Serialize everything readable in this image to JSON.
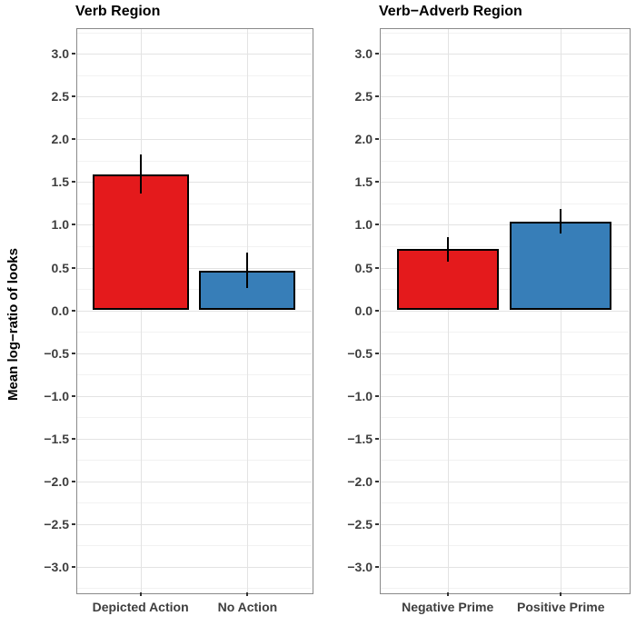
{
  "figure": {
    "y_axis_title": "Mean log−ratio of looks"
  },
  "palette": {
    "bar_red": "#E41A1C",
    "bar_blue": "#377EB8",
    "bar_outline": "#000000",
    "error_bar": "#000000",
    "grid_major": "#E3E3E3",
    "grid_minor": "#F2F2F2",
    "panel_border": "#8A8A8A",
    "tick_mark": "#333333",
    "axis_text": "#3E3E3E",
    "title_text": "#000000",
    "background": "#FFFFFF"
  },
  "chart_data": [
    {
      "type": "bar",
      "title": "Verb Region",
      "categories": [
        "Depicted Action",
        "No Action"
      ],
      "values": [
        1.59,
        0.46
      ],
      "error_low": [
        1.37,
        0.26
      ],
      "error_high": [
        1.82,
        0.68
      ],
      "bar_colors": [
        "#E41A1C",
        "#377EB8"
      ],
      "ylabel": "Mean log−ratio of looks",
      "xlabel": "",
      "ylim": [
        -3.3,
        3.3
      ],
      "yticks": {
        "min": -3.0,
        "max": 3.0,
        "step": 0.5
      },
      "grid": "horizontal major+minor, vertical at categories",
      "legend": "none",
      "error_bar_style": "vertical line, no caps"
    },
    {
      "type": "bar",
      "title": "Verb−Adverb Region",
      "categories": [
        "Negative Prime",
        "Positive Prime"
      ],
      "values": [
        0.72,
        1.04
      ],
      "error_low": [
        0.57,
        0.9
      ],
      "error_high": [
        0.86,
        1.19
      ],
      "bar_colors": [
        "#E41A1C",
        "#377EB8"
      ],
      "ylabel": "",
      "xlabel": "",
      "ylim": [
        -3.3,
        3.3
      ],
      "yticks": {
        "min": -3.0,
        "max": 3.0,
        "step": 0.5
      },
      "grid": "horizontal major+minor, vertical at categories",
      "legend": "none",
      "error_bar_style": "vertical line, no caps"
    }
  ]
}
